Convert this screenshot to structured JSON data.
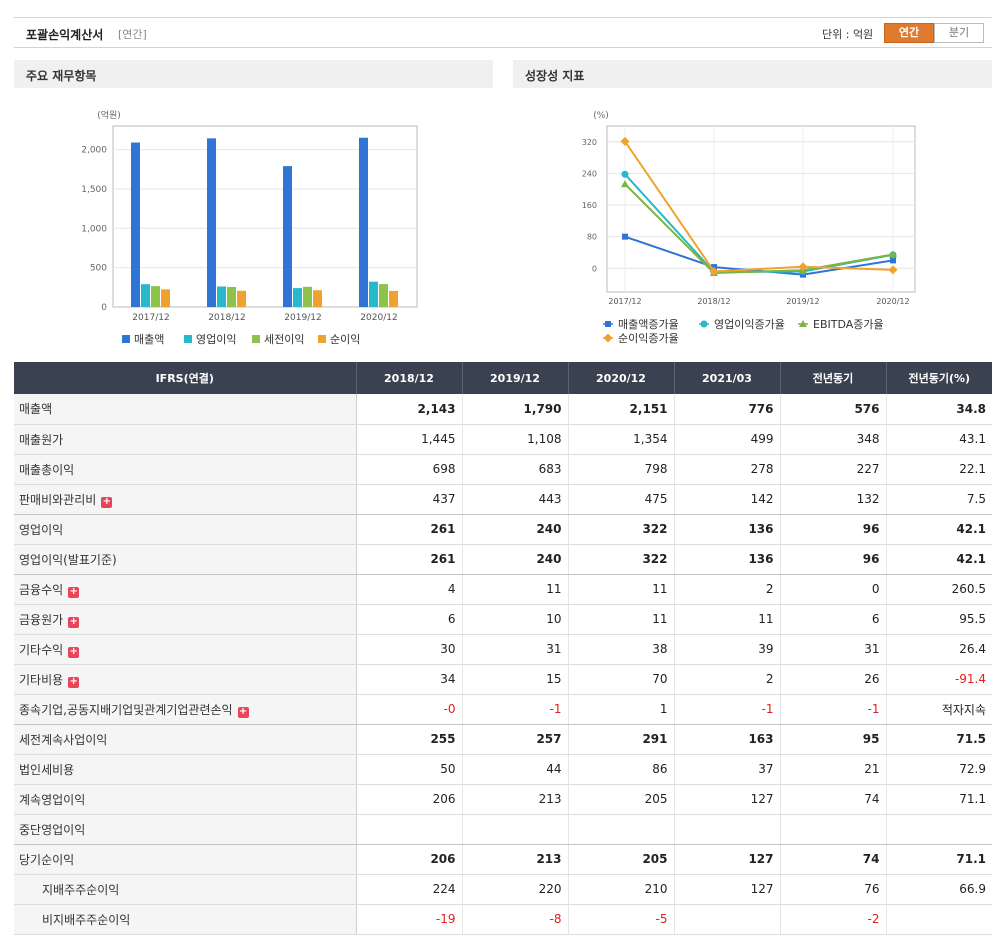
{
  "header": {
    "title": "포괄손익계산서",
    "subtitle": "[연간]",
    "unit": "단위 : 억원",
    "toggle_annual": "연간",
    "toggle_quarter": "분기"
  },
  "panels": {
    "left_title": "주요 재무항목",
    "right_title": "성장성 지표"
  },
  "colors": {
    "bar_sales": "#2e75d6",
    "bar_op": "#27b9c9",
    "bar_pretax": "#8dc34a",
    "bar_net": "#f0a22e",
    "line_sales": "#2e75d6",
    "line_op": "#27b9c9",
    "line_ebitda": "#7cb342",
    "line_net": "#f0a22e",
    "negative": "#e02020",
    "toggle_active": "#e07a2f"
  },
  "chart_data": [
    {
      "type": "bar",
      "unit_label": "(억원)",
      "categories": [
        "2017/12",
        "2018/12",
        "2019/12",
        "2020/12"
      ],
      "ylim": [
        0,
        2300
      ],
      "yticks": [
        "0",
        "500",
        "1,000",
        "1,500",
        "2,000"
      ],
      "ytick_values": [
        0,
        500,
        1000,
        1500,
        2000
      ],
      "grid": true,
      "legend_position": "bottom",
      "series": [
        {
          "name": "매출액",
          "values": [
            2090,
            2143,
            1790,
            2151
          ]
        },
        {
          "name": "영업이익",
          "values": [
            290,
            261,
            240,
            322
          ]
        },
        {
          "name": "세전이익",
          "values": [
            265,
            255,
            257,
            291
          ]
        },
        {
          "name": "순이익",
          "values": [
            225,
            206,
            213,
            205
          ]
        }
      ]
    },
    {
      "type": "line",
      "unit_label": "(%)",
      "categories": [
        "2017/12",
        "2018/12",
        "2019/12",
        "2020/12"
      ],
      "ylim": [
        -60,
        360
      ],
      "yticks": [
        "0",
        "80",
        "160",
        "240",
        "320"
      ],
      "ytick_values": [
        0,
        80,
        160,
        240,
        320
      ],
      "grid": true,
      "legend_position": "bottom",
      "series": [
        {
          "name": "매출액증가율",
          "values": [
            80,
            3,
            -16,
            20
          ]
        },
        {
          "name": "영업이익증가율",
          "values": [
            238,
            -10,
            -8,
            34
          ]
        },
        {
          "name": "EBITDA증가율",
          "values": [
            213,
            -12,
            -5,
            35
          ]
        },
        {
          "name": "순이익증가율",
          "values": [
            321,
            -8,
            4,
            -4
          ]
        }
      ]
    }
  ],
  "table": {
    "headers": [
      "IFRS(연결)",
      "2018/12",
      "2019/12",
      "2020/12",
      "2021/03",
      "전년동기",
      "전년동기(%)"
    ],
    "rows": [
      {
        "label": "매출액",
        "values": [
          "2,143",
          "1,790",
          "2,151",
          "776",
          "576",
          "34.8"
        ],
        "bold": true,
        "expand": false,
        "indent": false
      },
      {
        "label": "매출원가",
        "values": [
          "1,445",
          "1,108",
          "1,354",
          "499",
          "348",
          "43.1"
        ],
        "bold": false,
        "expand": false,
        "indent": false
      },
      {
        "label": "매출총이익",
        "values": [
          "698",
          "683",
          "798",
          "278",
          "227",
          "22.1"
        ],
        "bold": false,
        "expand": false,
        "indent": false
      },
      {
        "label": "판매비와관리비",
        "values": [
          "437",
          "443",
          "475",
          "142",
          "132",
          "7.5"
        ],
        "bold": false,
        "expand": true,
        "indent": false
      },
      {
        "label": "영업이익",
        "values": [
          "261",
          "240",
          "322",
          "136",
          "96",
          "42.1"
        ],
        "bold": true,
        "expand": false,
        "indent": false
      },
      {
        "label": "영업이익(발표기준)",
        "values": [
          "261",
          "240",
          "322",
          "136",
          "96",
          "42.1"
        ],
        "bold": true,
        "expand": false,
        "indent": false
      },
      {
        "label": "금융수익",
        "values": [
          "4",
          "11",
          "11",
          "2",
          "0",
          "260.5"
        ],
        "bold": false,
        "expand": true,
        "indent": false
      },
      {
        "label": "금융원가",
        "values": [
          "6",
          "10",
          "11",
          "11",
          "6",
          "95.5"
        ],
        "bold": false,
        "expand": true,
        "indent": false
      },
      {
        "label": "기타수익",
        "values": [
          "30",
          "31",
          "38",
          "39",
          "31",
          "26.4"
        ],
        "bold": false,
        "expand": true,
        "indent": false
      },
      {
        "label": "기타비용",
        "values": [
          "34",
          "15",
          "70",
          "2",
          "26",
          "-91.4"
        ],
        "bold": false,
        "expand": true,
        "indent": false
      },
      {
        "label": "종속기업,공동지배기업및관계기업관련손익",
        "values": [
          "-0",
          "-1",
          "1",
          "-1",
          "-1",
          "적자지속"
        ],
        "bold": false,
        "expand": true,
        "indent": false
      },
      {
        "label": "세전계속사업이익",
        "values": [
          "255",
          "257",
          "291",
          "163",
          "95",
          "71.5"
        ],
        "bold": true,
        "expand": false,
        "indent": false
      },
      {
        "label": "법인세비용",
        "values": [
          "50",
          "44",
          "86",
          "37",
          "21",
          "72.9"
        ],
        "bold": false,
        "expand": false,
        "indent": false
      },
      {
        "label": "계속영업이익",
        "values": [
          "206",
          "213",
          "205",
          "127",
          "74",
          "71.1"
        ],
        "bold": false,
        "expand": false,
        "indent": false
      },
      {
        "label": "중단영업이익",
        "values": [
          "",
          "",
          "",
          "",
          "",
          ""
        ],
        "bold": false,
        "expand": false,
        "indent": false
      },
      {
        "label": "당기순이익",
        "values": [
          "206",
          "213",
          "205",
          "127",
          "74",
          "71.1"
        ],
        "bold": true,
        "expand": false,
        "indent": false
      },
      {
        "label": "지배주주순이익",
        "values": [
          "224",
          "220",
          "210",
          "127",
          "76",
          "66.9"
        ],
        "bold": false,
        "expand": false,
        "indent": true
      },
      {
        "label": "비지배주주순이익",
        "values": [
          "-19",
          "-8",
          "-5",
          "",
          "-2",
          ""
        ],
        "bold": false,
        "expand": false,
        "indent": true
      }
    ]
  }
}
